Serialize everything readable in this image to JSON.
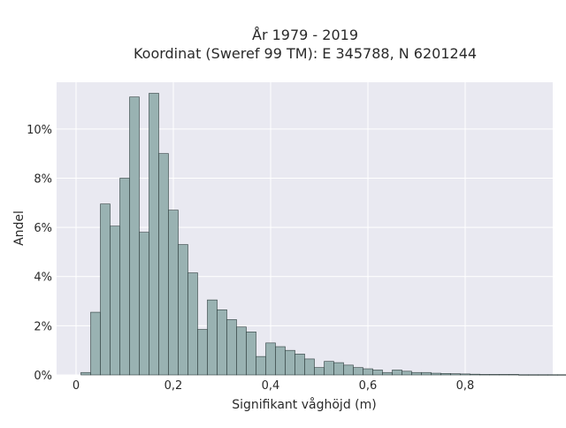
{
  "chart_data": {
    "type": "bar",
    "title_line1": "År 1979 - 2019",
    "title_line2": "Koordinat (Sweref 99 TM): E 345788, N 6201244",
    "xlabel": "Signifikant våghöjd (m)",
    "ylabel": "Andel",
    "x_ticks": [
      {
        "value": 0,
        "label": "0"
      },
      {
        "value": 0.2,
        "label": "0,2"
      },
      {
        "value": 0.4,
        "label": "0,4"
      },
      {
        "value": 0.6,
        "label": "0,6"
      },
      {
        "value": 0.8,
        "label": "0,8"
      }
    ],
    "y_ticks": [
      {
        "value": 0,
        "label": "0%"
      },
      {
        "value": 2,
        "label": "2%"
      },
      {
        "value": 4,
        "label": "4%"
      },
      {
        "value": 6,
        "label": "6%"
      },
      {
        "value": 8,
        "label": "8%"
      },
      {
        "value": 10,
        "label": "10%"
      }
    ],
    "xlim": [
      -0.04,
      0.98
    ],
    "ylim": [
      0,
      11.9
    ],
    "bin_start": 0.01,
    "bin_width": 0.02,
    "values": [
      0.1,
      2.55,
      6.95,
      6.05,
      8.0,
      11.3,
      5.8,
      11.45,
      9.0,
      6.7,
      5.3,
      4.15,
      1.85,
      3.05,
      2.65,
      2.25,
      1.95,
      1.75,
      0.75,
      1.3,
      1.15,
      1.0,
      0.85,
      0.65,
      0.3,
      0.55,
      0.5,
      0.4,
      0.3,
      0.25,
      0.2,
      0.1,
      0.2,
      0.15,
      0.1,
      0.1,
      0.07,
      0.06,
      0.05,
      0.04,
      0.03,
      0.02,
      0.02,
      0.02,
      0.02,
      0.01,
      0.01,
      0.01,
      0.01,
      0.01
    ],
    "grid": true,
    "colors": {
      "plot_background": "#e9e9f1",
      "bar_fill": "#99b2b2",
      "bar_edge": "#2f3e3e",
      "grid": "#ffffff"
    }
  }
}
